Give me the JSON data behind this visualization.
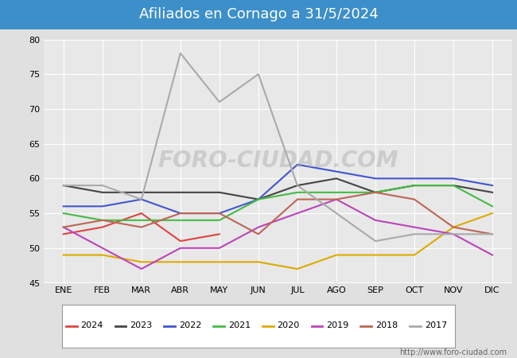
{
  "title": "Afiliados en Cornago a 31/5/2024",
  "title_bg_color": "#3d8fc9",
  "title_text_color": "white",
  "months": [
    "ENE",
    "FEB",
    "MAR",
    "ABR",
    "MAY",
    "JUN",
    "JUL",
    "AGO",
    "SEP",
    "OCT",
    "NOV",
    "DIC"
  ],
  "ylim": [
    45,
    80
  ],
  "yticks": [
    45,
    50,
    55,
    60,
    65,
    70,
    75,
    80
  ],
  "watermark": "FORO-CIUDAD.COM",
  "url": "http://www.foro-ciudad.com",
  "background_color": "#e0e0e0",
  "plot_bg_color": "#e8e8e8",
  "series": {
    "2024": {
      "color": "#dd4444",
      "data": [
        52,
        53,
        55,
        51,
        52,
        null,
        null,
        null,
        null,
        null,
        null,
        null
      ]
    },
    "2023": {
      "color": "#444444",
      "data": [
        59,
        58,
        58,
        58,
        58,
        57,
        59,
        60,
        58,
        59,
        59,
        58
      ]
    },
    "2022": {
      "color": "#4455cc",
      "data": [
        56,
        56,
        57,
        55,
        55,
        57,
        62,
        61,
        60,
        60,
        60,
        59
      ]
    },
    "2021": {
      "color": "#44bb44",
      "data": [
        55,
        54,
        54,
        54,
        54,
        57,
        58,
        58,
        58,
        59,
        59,
        56
      ]
    },
    "2020": {
      "color": "#ddaa00",
      "data": [
        49,
        49,
        48,
        48,
        48,
        48,
        47,
        49,
        49,
        49,
        53,
        55
      ]
    },
    "2019": {
      "color": "#bb44bb",
      "data": [
        53,
        50,
        47,
        50,
        50,
        53,
        55,
        57,
        54,
        53,
        52,
        49
      ]
    },
    "2018": {
      "color": "#bb6655",
      "data": [
        53,
        54,
        53,
        55,
        55,
        52,
        57,
        57,
        58,
        57,
        53,
        52
      ]
    },
    "2017": {
      "color": "#aaaaaa",
      "data": [
        59,
        59,
        57,
        78,
        71,
        75,
        59,
        55,
        51,
        52,
        52,
        52
      ]
    }
  }
}
